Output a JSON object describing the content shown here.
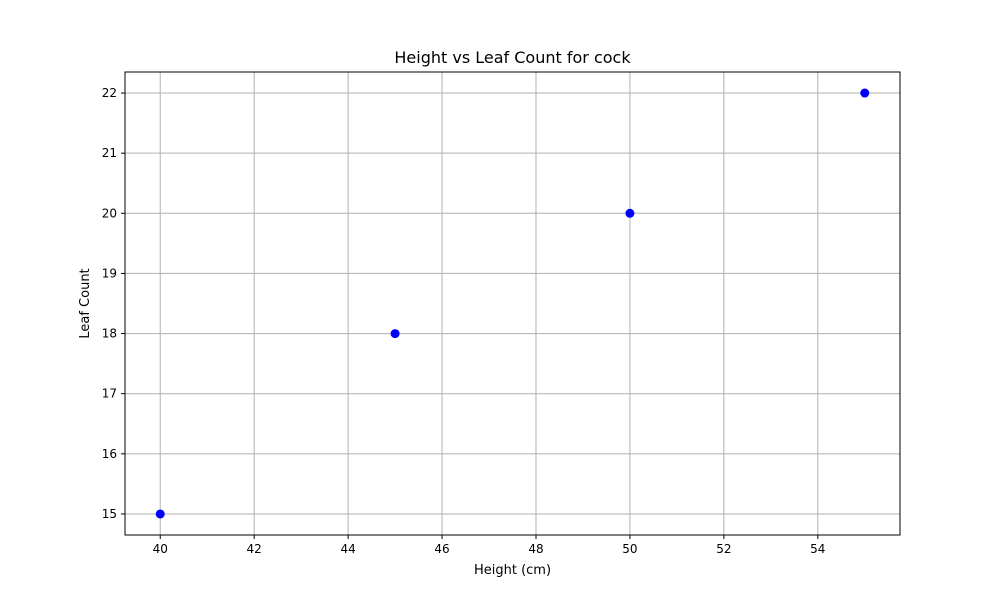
{
  "chart_data": {
    "type": "scatter",
    "title": "Height vs Leaf Count for cock",
    "xlabel": "Height (cm)",
    "ylabel": "Leaf Count",
    "xlim": [
      39.25,
      55.75
    ],
    "ylim": [
      14.65,
      22.35
    ],
    "xticks": [
      40,
      42,
      44,
      46,
      48,
      50,
      52,
      54
    ],
    "yticks": [
      15,
      16,
      17,
      18,
      19,
      20,
      21,
      22
    ],
    "grid": true,
    "series": [
      {
        "color": "#0000ff",
        "points": [
          {
            "x": 40,
            "y": 15
          },
          {
            "x": 45,
            "y": 18
          },
          {
            "x": 50,
            "y": 20
          },
          {
            "x": 55,
            "y": 22
          }
        ]
      }
    ]
  }
}
